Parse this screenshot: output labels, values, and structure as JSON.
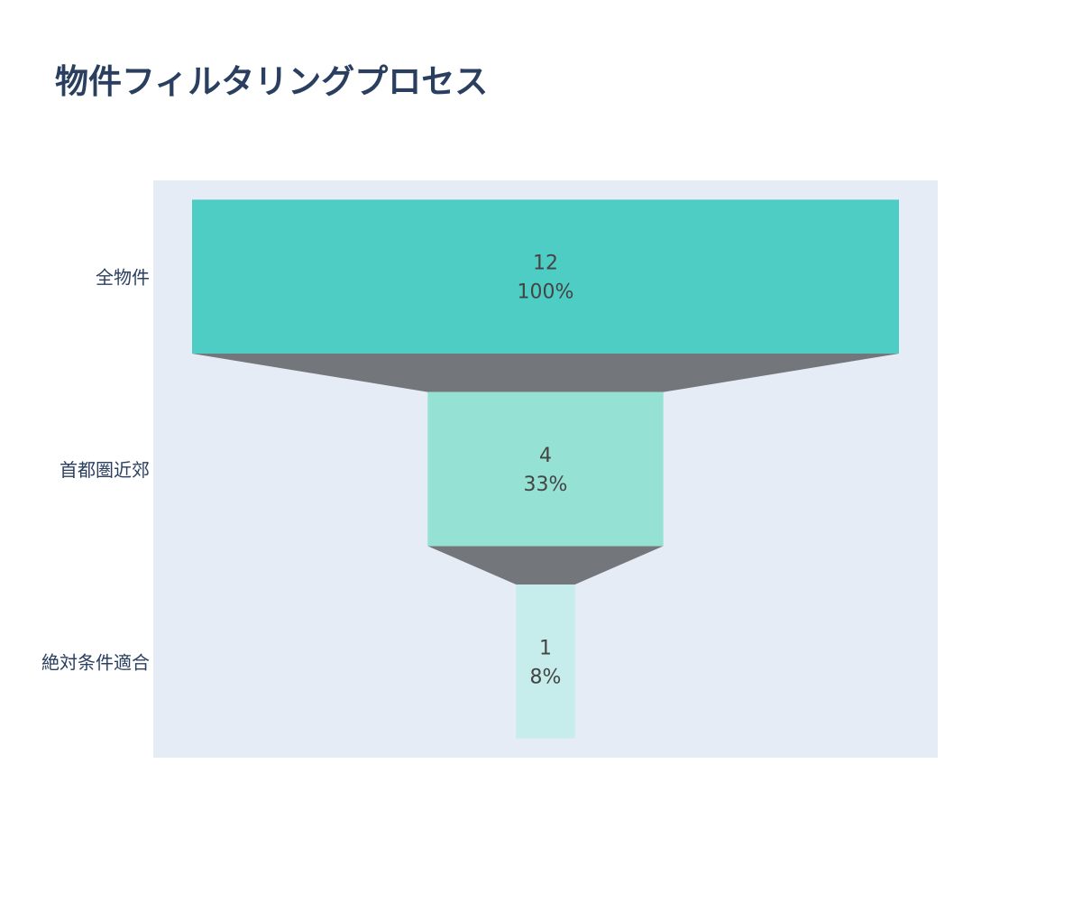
{
  "chart_data": {
    "type": "funnel",
    "title": "物件フィルタリングプロセス",
    "categories": [
      "全物件",
      "首都圏近郊",
      "絶対条件適合"
    ],
    "values": [
      12,
      4,
      1
    ],
    "percent_labels": [
      "100%",
      "33%",
      "8%"
    ],
    "colors": [
      "#4ECDC4",
      "#95E1D3",
      "#C7ECEC"
    ],
    "connector_color": "#73767a",
    "plot_background": "#e5ecf6",
    "text_color": "#444444",
    "axis_label_color": "#2a3f5f"
  }
}
